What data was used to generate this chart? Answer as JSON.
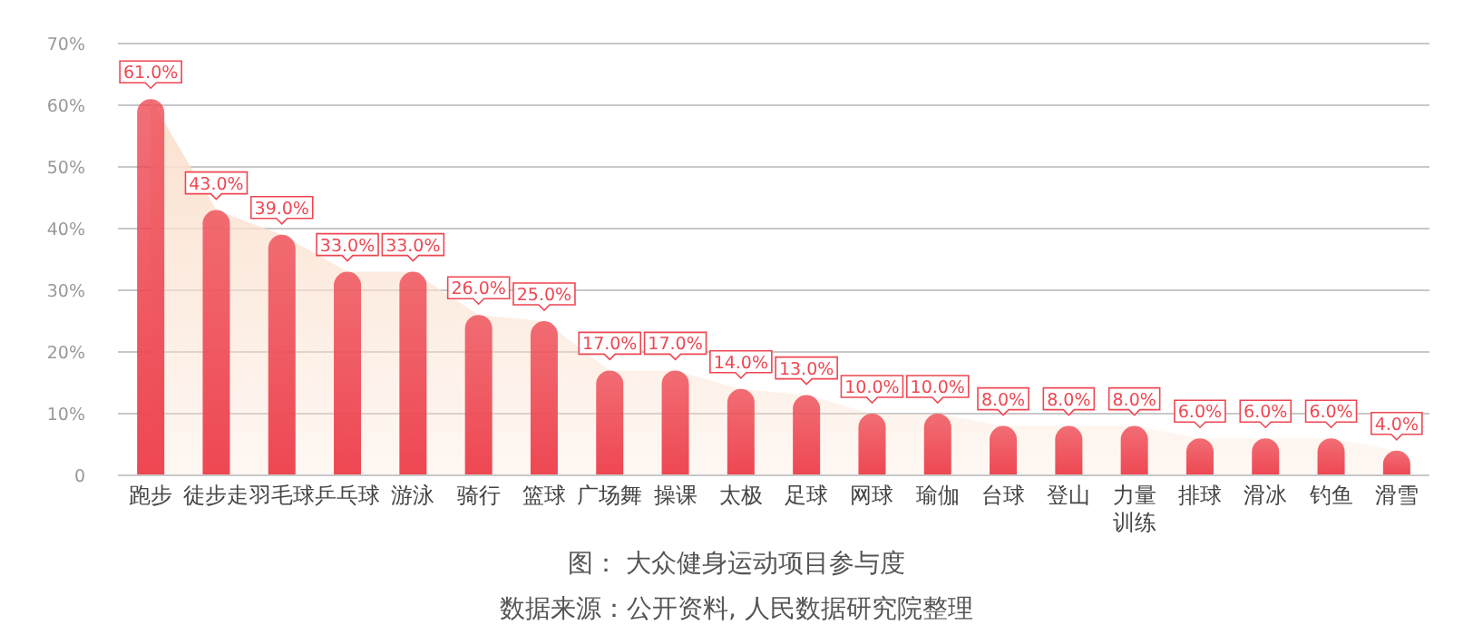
{
  "chart_data": {
    "type": "bar",
    "title": "图：  大众健身运动项目参与度",
    "annotations": [
      "数据来源：公开资料, 人民数据研究院整理"
    ],
    "categories": [
      "跑步",
      "徒步走",
      "羽毛球",
      "乒乓球",
      "游泳",
      "骑行",
      "篮球",
      "广场舞",
      "操课",
      "太极",
      "足球",
      "网球",
      "瑜伽",
      "台球",
      "登山",
      "力量训练",
      "排球",
      "滑冰",
      "钓鱼",
      "滑雪"
    ],
    "series": [
      {
        "type": "area",
        "color": "#fbe1cf",
        "values": [
          61,
          43,
          39,
          33,
          33,
          26,
          25,
          17,
          17,
          14,
          13,
          10,
          10,
          8,
          8,
          8,
          6,
          6,
          6,
          4
        ]
      },
      {
        "color": "#ee4752",
        "values": [
          61,
          43,
          39,
          33,
          33,
          26,
          25,
          17,
          17,
          14,
          13,
          10,
          10,
          8,
          8,
          8,
          6,
          6,
          6,
          4
        ],
        "value_labels": [
          "61.0%",
          "43.0%",
          "39.0%",
          "33.0%",
          "33.0%",
          "26.0%",
          "25.0%",
          "17.0%",
          "17.0%",
          "14.0%",
          "13.0%",
          "10.0%",
          "10.0%",
          "8.0%",
          "8.0%",
          "8.0%",
          "6.0%",
          "6.0%",
          "6.0%",
          "4.0%"
        ]
      }
    ],
    "ylim": [
      0,
      70
    ],
    "yticks": [
      0,
      {
        "value": 10,
        "label": "10%"
      },
      {
        "value": 20,
        "label": "20%"
      },
      {
        "value": 30,
        "label": "30%"
      },
      {
        "value": 40,
        "label": "40%"
      },
      {
        "value": 50,
        "label": "50%"
      },
      {
        "value": 60,
        "label": "60%"
      },
      {
        "value": 70,
        "label": "70%"
      }
    ],
    "grid": "y"
  }
}
